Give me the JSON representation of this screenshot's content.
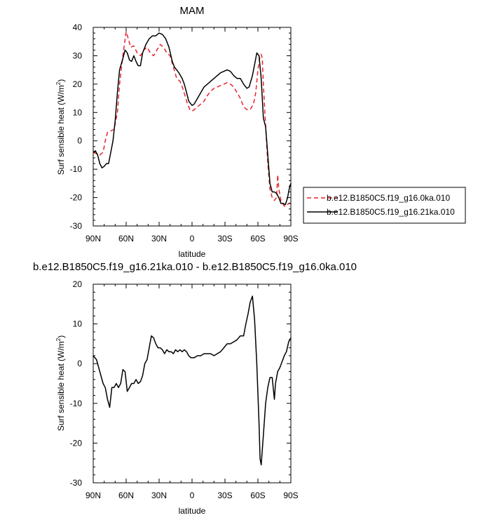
{
  "chart_data": [
    {
      "type": "line",
      "title": "MAM",
      "xlabel": "latitude",
      "ylabel": "Surf sensible heat (W/m",
      "ylabel_sup": "2",
      "ylabel_close": ")",
      "xlim": [
        90,
        -90
      ],
      "ylim": [
        -30,
        40
      ],
      "xticks": [
        90,
        60,
        30,
        0,
        -30,
        -60,
        -90
      ],
      "xtick_labels": [
        "90N",
        "60N",
        "30N",
        "0",
        "30S",
        "60S",
        "90S"
      ],
      "yticks": [
        -30,
        -20,
        -10,
        0,
        10,
        20,
        30,
        40
      ],
      "ytick_labels": [
        "-30",
        "-20",
        "-10",
        "0",
        "10",
        "20",
        "30",
        "40"
      ],
      "legend_position": "right",
      "series": [
        {
          "name": "b.e12.B1850C5.f19_g16.0ka.010",
          "color": "#e8232b",
          "dash": "dashed",
          "points": [
            [
              90,
              -4
            ],
            [
              87,
              -4.5
            ],
            [
              84,
              -5
            ],
            [
              81,
              -4
            ],
            [
              79,
              0
            ],
            [
              77,
              3
            ],
            [
              74,
              3.5
            ],
            [
              71,
              4
            ],
            [
              68,
              10
            ],
            [
              66,
              20
            ],
            [
              63,
              30
            ],
            [
              60,
              38.5
            ],
            [
              58,
              36
            ],
            [
              56,
              33
            ],
            [
              53,
              33.5
            ],
            [
              50,
              31
            ],
            [
              47,
              30
            ],
            [
              44,
              32
            ],
            [
              41,
              33
            ],
            [
              38,
              31
            ],
            [
              35,
              30
            ],
            [
              32,
              32
            ],
            [
              29,
              34
            ],
            [
              26,
              33
            ],
            [
              23,
              31
            ],
            [
              20,
              30
            ],
            [
              17,
              26
            ],
            [
              14,
              22
            ],
            [
              11,
              21
            ],
            [
              8,
              18
            ],
            [
              5,
              14
            ],
            [
              2,
              11
            ],
            [
              0,
              10.5
            ],
            [
              -2,
              11
            ],
            [
              -5,
              12
            ],
            [
              -8,
              13
            ],
            [
              -11,
              14
            ],
            [
              -14,
              16
            ],
            [
              -17,
              17.5
            ],
            [
              -20,
              18.5
            ],
            [
              -23,
              19
            ],
            [
              -26,
              19.5
            ],
            [
              -29,
              20
            ],
            [
              -32,
              20.5
            ],
            [
              -35,
              20
            ],
            [
              -38,
              19
            ],
            [
              -41,
              17
            ],
            [
              -44,
              15
            ],
            [
              -47,
              12
            ],
            [
              -50,
              11
            ],
            [
              -53,
              11
            ],
            [
              -56,
              13
            ],
            [
              -58,
              17
            ],
            [
              -60,
              25
            ],
            [
              -62,
              30
            ],
            [
              -63,
              30.5
            ],
            [
              -64,
              29
            ],
            [
              -65,
              20
            ],
            [
              -67,
              5
            ],
            [
              -69,
              -8
            ],
            [
              -71,
              -17
            ],
            [
              -73,
              -20
            ],
            [
              -75,
              -21
            ],
            [
              -77,
              -20
            ],
            [
              -78,
              -12
            ],
            [
              -79,
              -17
            ],
            [
              -81,
              -21
            ],
            [
              -84,
              -23
            ],
            [
              -86,
              -23
            ],
            [
              -88,
              -22
            ],
            [
              -90,
              -22
            ]
          ]
        },
        {
          "name": "b.e12.B1850C5.f19_g16.21ka.010",
          "color": "#000000",
          "dash": "solid",
          "points": [
            [
              90,
              -4
            ],
            [
              88,
              -3.5
            ],
            [
              86,
              -5
            ],
            [
              84,
              -8
            ],
            [
              82,
              -9.5
            ],
            [
              80,
              -9
            ],
            [
              78,
              -8
            ],
            [
              76,
              -8
            ],
            [
              74,
              -4
            ],
            [
              72,
              0
            ],
            [
              70,
              7
            ],
            [
              68,
              17
            ],
            [
              66,
              25
            ],
            [
              63,
              29
            ],
            [
              61,
              32
            ],
            [
              59,
              31
            ],
            [
              57,
              28.5
            ],
            [
              55,
              28
            ],
            [
              53,
              30
            ],
            [
              51,
              28
            ],
            [
              49,
              26.5
            ],
            [
              47,
              26.5
            ],
            [
              45,
              31
            ],
            [
              42,
              34
            ],
            [
              39,
              36
            ],
            [
              36,
              37
            ],
            [
              33,
              37
            ],
            [
              30,
              38
            ],
            [
              27,
              37.5
            ],
            [
              24,
              36
            ],
            [
              21,
              33
            ],
            [
              18,
              28
            ],
            [
              16,
              26
            ],
            [
              14,
              25
            ],
            [
              12,
              24
            ],
            [
              9,
              22
            ],
            [
              7,
              20
            ],
            [
              5,
              17
            ],
            [
              3,
              14
            ],
            [
              1,
              13
            ],
            [
              0,
              12.5
            ],
            [
              -2,
              13
            ],
            [
              -5,
              15
            ],
            [
              -8,
              17
            ],
            [
              -11,
              19
            ],
            [
              -14,
              20
            ],
            [
              -17,
              21
            ],
            [
              -20,
              22
            ],
            [
              -23,
              23
            ],
            [
              -26,
              24
            ],
            [
              -29,
              24.5
            ],
            [
              -32,
              25
            ],
            [
              -35,
              24.5
            ],
            [
              -38,
              23
            ],
            [
              -41,
              22
            ],
            [
              -44,
              22
            ],
            [
              -47,
              20
            ],
            [
              -50,
              18.5
            ],
            [
              -52,
              19
            ],
            [
              -55,
              23
            ],
            [
              -58,
              29
            ],
            [
              -59,
              31
            ],
            [
              -61,
              30
            ],
            [
              -63,
              22
            ],
            [
              -65,
              8
            ],
            [
              -67,
              5
            ],
            [
              -69,
              -5
            ],
            [
              -71,
              -15
            ],
            [
              -73,
              -18
            ],
            [
              -75,
              -18
            ],
            [
              -77,
              -18.5
            ],
            [
              -79,
              -20
            ],
            [
              -81,
              -22
            ],
            [
              -83,
              -22
            ],
            [
              -85,
              -22.5
            ],
            [
              -87,
              -20
            ],
            [
              -89,
              -16
            ],
            [
              -90,
              -15
            ]
          ]
        }
      ]
    },
    {
      "type": "line",
      "title": "b.e12.B1850C5.f19_g16.21ka.010 - b.e12.B1850C5.f19_g16.0ka.010",
      "xlabel": "latitude",
      "ylabel": "Surf sensible heat (W/m",
      "ylabel_sup": "2",
      "ylabel_close": ")",
      "xlim": [
        90,
        -90
      ],
      "ylim": [
        -30,
        20
      ],
      "xticks": [
        90,
        60,
        30,
        0,
        -30,
        -60,
        -90
      ],
      "xtick_labels": [
        "90N",
        "60N",
        "30N",
        "0",
        "30S",
        "60S",
        "90S"
      ],
      "yticks": [
        -30,
        -20,
        -10,
        0,
        10,
        20
      ],
      "ytick_labels": [
        "-30",
        "-20",
        "-10",
        "0",
        "10",
        "20"
      ],
      "series": [
        {
          "color": "#000000",
          "dash": "solid",
          "points": [
            [
              90,
              2
            ],
            [
              87,
              1
            ],
            [
              84,
              -2
            ],
            [
              81,
              -5
            ],
            [
              79,
              -6
            ],
            [
              77,
              -9
            ],
            [
              75,
              -11
            ],
            [
              73,
              -6
            ],
            [
              71,
              -6
            ],
            [
              69,
              -5
            ],
            [
              67,
              -6
            ],
            [
              65,
              -5
            ],
            [
              63,
              -1.5
            ],
            [
              61,
              -2
            ],
            [
              59,
              -7
            ],
            [
              57,
              -6
            ],
            [
              55,
              -5
            ],
            [
              53,
              -5
            ],
            [
              51,
              -4
            ],
            [
              49,
              -5
            ],
            [
              47,
              -4.5
            ],
            [
              45,
              -3
            ],
            [
              43,
              0
            ],
            [
              41,
              1
            ],
            [
              39,
              4
            ],
            [
              37,
              7
            ],
            [
              35,
              6.5
            ],
            [
              33,
              5
            ],
            [
              31,
              4
            ],
            [
              29,
              4
            ],
            [
              27,
              3.5
            ],
            [
              25,
              2.5
            ],
            [
              23,
              3.5
            ],
            [
              21,
              3
            ],
            [
              19,
              3
            ],
            [
              17,
              2.5
            ],
            [
              15,
              3.5
            ],
            [
              13,
              3
            ],
            [
              11,
              3.5
            ],
            [
              9,
              3
            ],
            [
              7,
              3.5
            ],
            [
              5,
              3
            ],
            [
              3,
              2
            ],
            [
              1,
              1.5
            ],
            [
              -2,
              1.5
            ],
            [
              -5,
              2
            ],
            [
              -8,
              2
            ],
            [
              -11,
              2.5
            ],
            [
              -14,
              2.5
            ],
            [
              -17,
              2.5
            ],
            [
              -20,
              2
            ],
            [
              -23,
              2.5
            ],
            [
              -26,
              3
            ],
            [
              -29,
              4
            ],
            [
              -32,
              5
            ],
            [
              -35,
              5
            ],
            [
              -38,
              5.5
            ],
            [
              -41,
              6
            ],
            [
              -44,
              7
            ],
            [
              -47,
              7
            ],
            [
              -49,
              10
            ],
            [
              -51,
              12.5
            ],
            [
              -53,
              15.5
            ],
            [
              -55,
              17
            ],
            [
              -57,
              11
            ],
            [
              -59,
              0
            ],
            [
              -61,
              -15
            ],
            [
              -62,
              -24
            ],
            [
              -63,
              -25.5
            ],
            [
              -65,
              -18
            ],
            [
              -67,
              -10
            ],
            [
              -69,
              -6
            ],
            [
              -71,
              -3.5
            ],
            [
              -73,
              -3.5
            ],
            [
              -75,
              -9
            ],
            [
              -76,
              -5
            ],
            [
              -78,
              -2
            ],
            [
              -80,
              -1
            ],
            [
              -82,
              0.5
            ],
            [
              -84,
              2
            ],
            [
              -86,
              3
            ],
            [
              -88,
              5.5
            ],
            [
              -90,
              6.5
            ]
          ]
        }
      ]
    }
  ]
}
